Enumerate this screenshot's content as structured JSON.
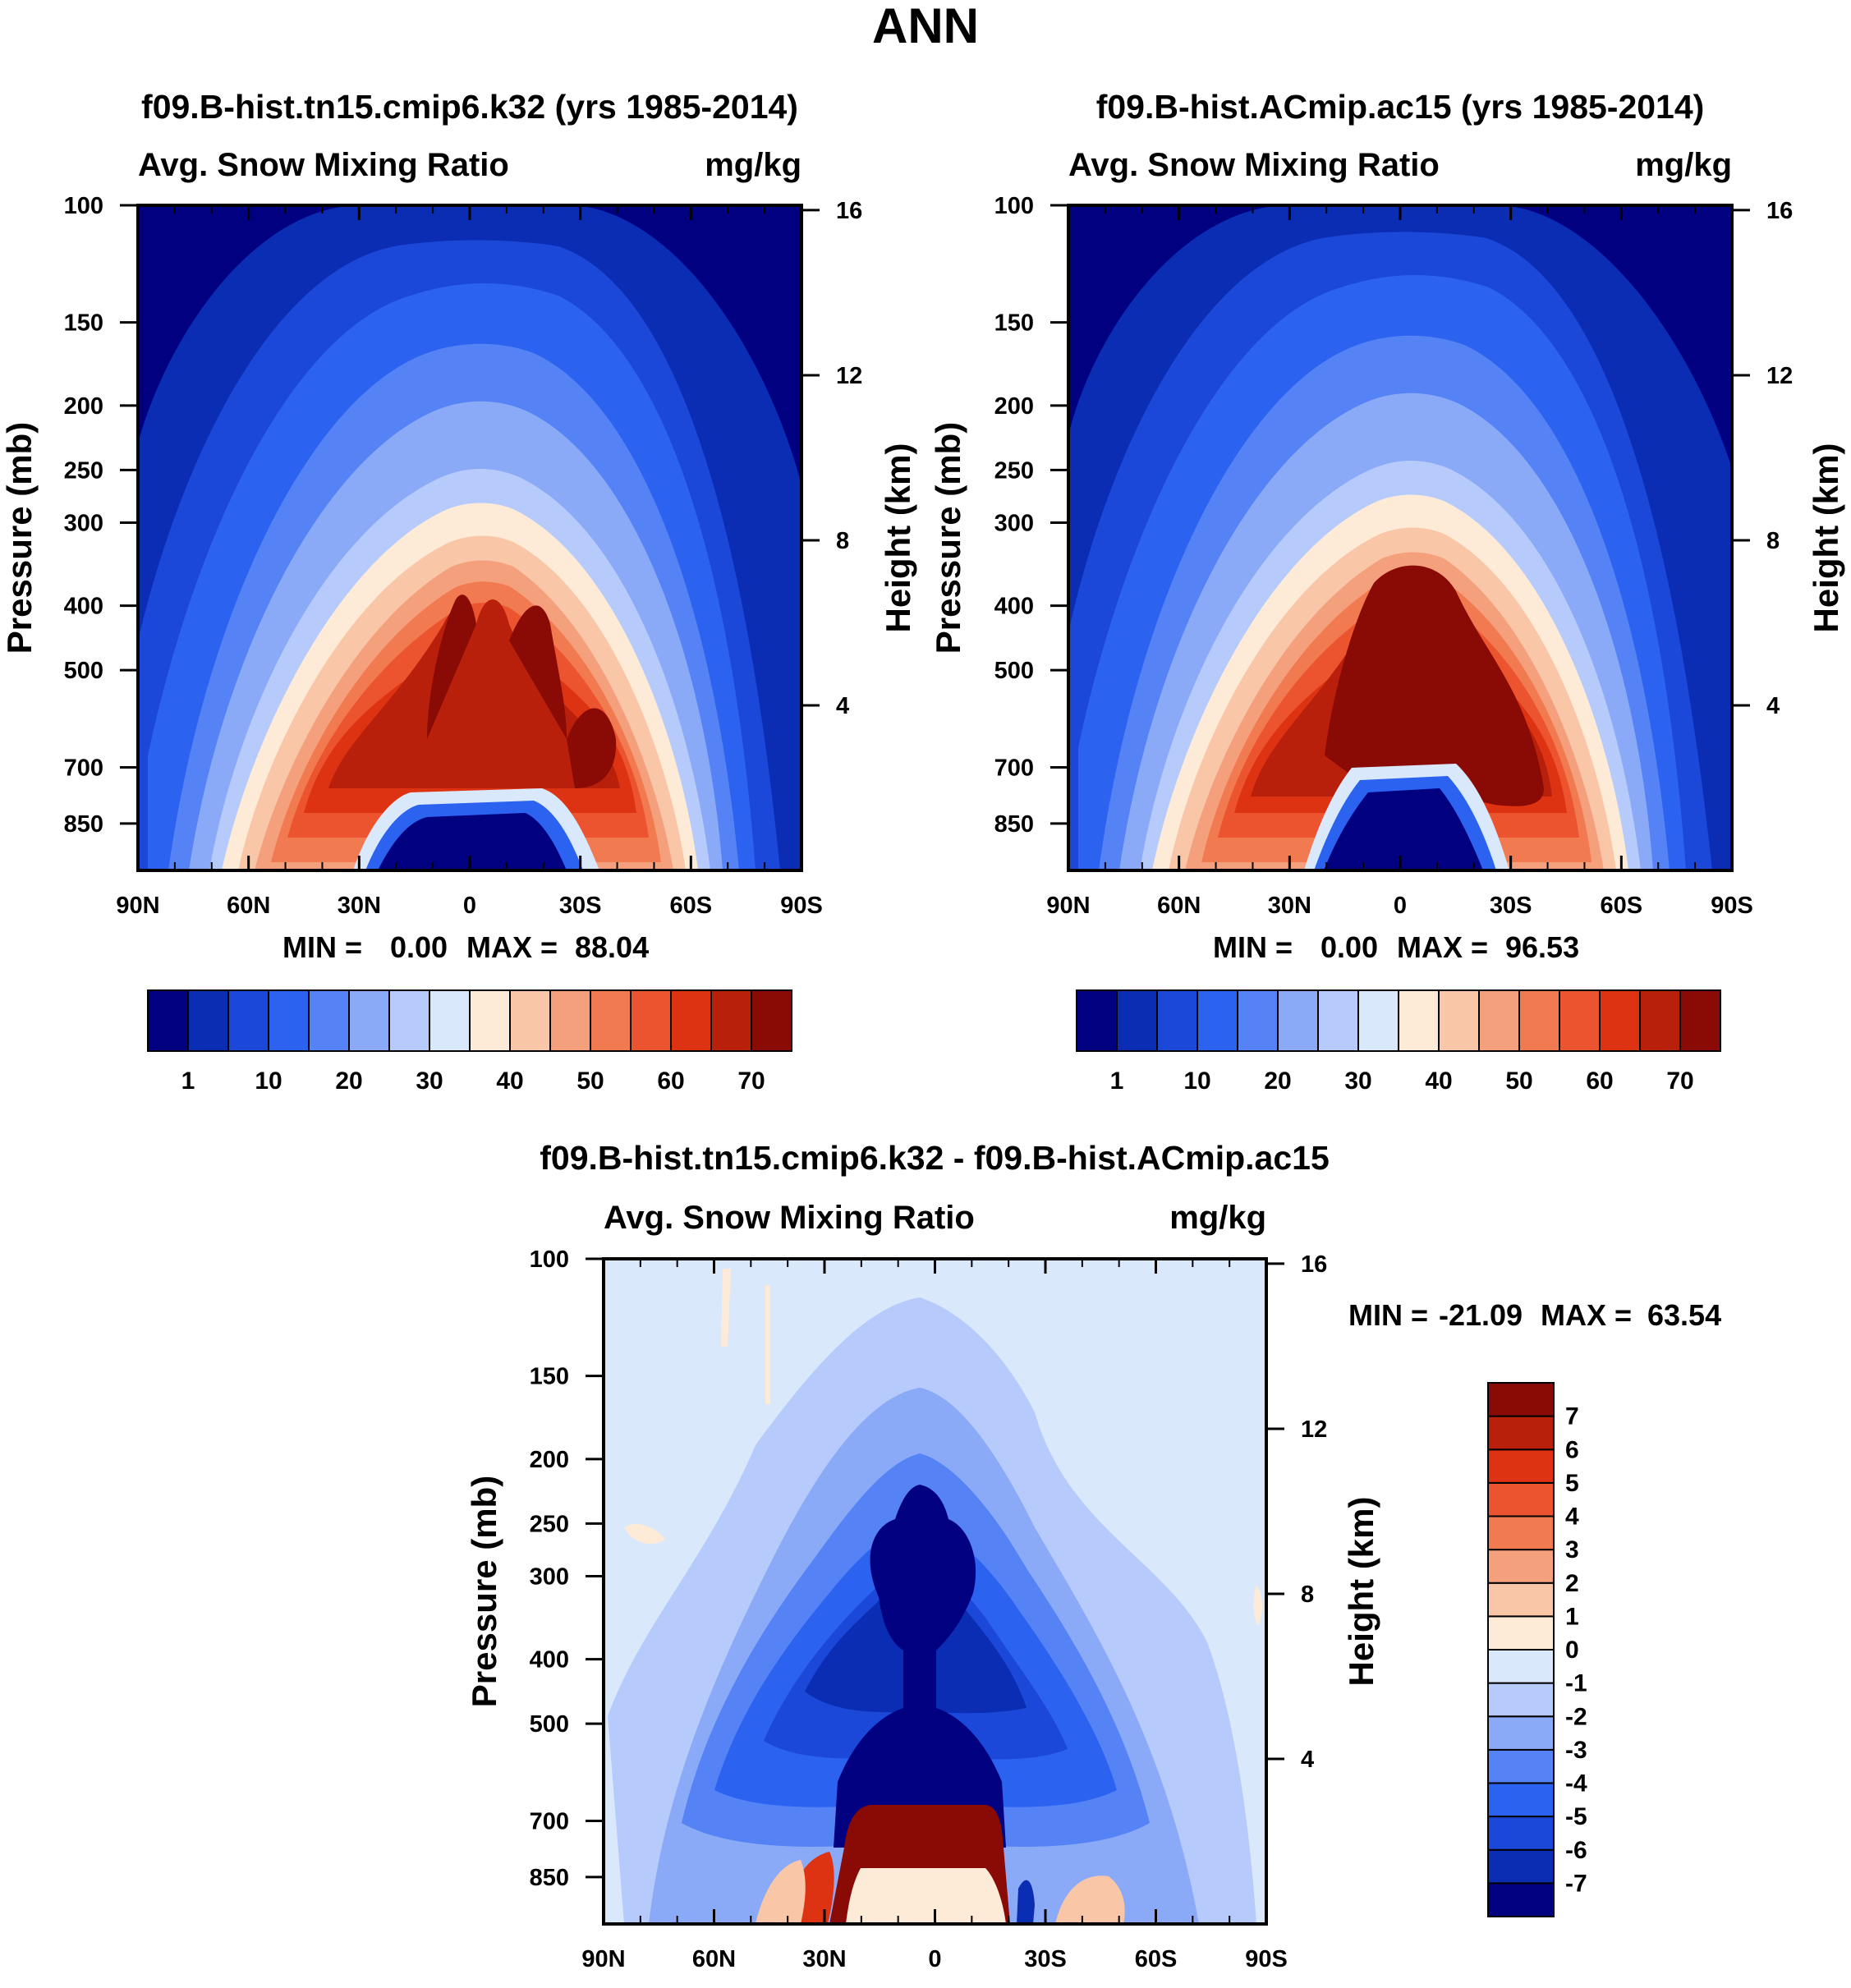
{
  "page_title": "ANN",
  "colors": {
    "seq": [
      "#000080",
      "#0a2db4",
      "#1b48d8",
      "#2b62f0",
      "#5583f6",
      "#8aaaf8",
      "#b6cbfb",
      "#dae8fc",
      "#fdebd8",
      "#f9c6a8",
      "#f5a07c",
      "#f27a50",
      "#ec5430",
      "#de3312",
      "#b8200c",
      "#8a0a06"
    ],
    "diff": [
      "#000080",
      "#0a2db4",
      "#1b48d8",
      "#2b62f0",
      "#5583f6",
      "#8aaaf8",
      "#b6cbfb",
      "#dae8fc",
      "#fdebd8",
      "#f9c6a8",
      "#f5a07c",
      "#f27a50",
      "#ec5430",
      "#de3312",
      "#b8200c",
      "#8a0a06"
    ]
  },
  "chart_data": [
    {
      "id": "panel1",
      "type": "heatmap",
      "title": "f09.B-hist.tn15.cmip6.k32 (yrs 1985-2014)",
      "variable": "Avg. Snow Mixing Ratio",
      "units": "mg/kg",
      "ylabel": "Pressure (mb)",
      "y2label": "Height (km)",
      "x_ticks": [
        "90N",
        "60N",
        "30N",
        "0",
        "30S",
        "60S",
        "90S"
      ],
      "y_ticks": [
        "100",
        "150",
        "200",
        "250",
        "300",
        "400",
        "500",
        "700",
        "850"
      ],
      "y2_ticks": [
        "16",
        "12",
        "8",
        "4"
      ],
      "stats": {
        "min_label": "MIN =",
        "min": "0.00",
        "max_label": "MAX =",
        "max": "88.04"
      },
      "colorbar_labels": [
        "1",
        "10",
        "20",
        "30",
        "40",
        "50",
        "60",
        "70"
      ]
    },
    {
      "id": "panel2",
      "type": "heatmap",
      "title": "f09.B-hist.ACmip.ac15 (yrs 1985-2014)",
      "variable": "Avg. Snow Mixing Ratio",
      "units": "mg/kg",
      "ylabel": "Pressure (mb)",
      "y2label": "Height (km)",
      "x_ticks": [
        "90N",
        "60N",
        "30N",
        "0",
        "30S",
        "60S",
        "90S"
      ],
      "y_ticks": [
        "100",
        "150",
        "200",
        "250",
        "300",
        "400",
        "500",
        "700",
        "850"
      ],
      "y2_ticks": [
        "16",
        "12",
        "8",
        "4"
      ],
      "stats": {
        "min_label": "MIN =",
        "min": "0.00",
        "max_label": "MAX =",
        "max": "96.53"
      },
      "colorbar_labels": [
        "1",
        "10",
        "20",
        "30",
        "40",
        "50",
        "60",
        "70"
      ]
    },
    {
      "id": "panel3",
      "type": "heatmap",
      "title": "f09.B-hist.tn15.cmip6.k32 - f09.B-hist.ACmip.ac15",
      "variable": "Avg. Snow Mixing Ratio",
      "units": "mg/kg",
      "ylabel": "Pressure (mb)",
      "y2label": "Height (km)",
      "x_ticks": [
        "90N",
        "60N",
        "30N",
        "0",
        "30S",
        "60S",
        "90S"
      ],
      "y_ticks": [
        "100",
        "150",
        "200",
        "250",
        "300",
        "400",
        "500",
        "700",
        "850"
      ],
      "y2_ticks": [
        "16",
        "12",
        "8",
        "4"
      ],
      "stats": {
        "min_label": "MIN =",
        "min": "-21.09",
        "max_label": "MAX =",
        "max": "63.54"
      },
      "colorbar_labels": [
        "7",
        "6",
        "5",
        "4",
        "3",
        "2",
        "1",
        "0",
        "-1",
        "-2",
        "-3",
        "-4",
        "-5",
        "-6",
        "-7"
      ]
    }
  ]
}
